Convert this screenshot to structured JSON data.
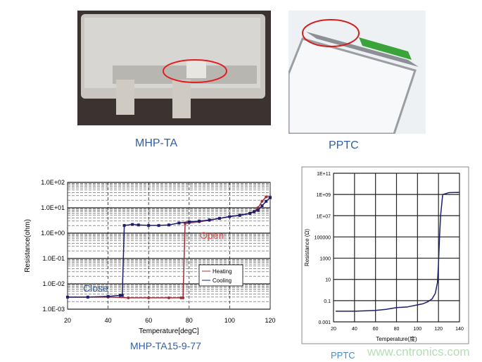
{
  "photos": [
    {
      "caption": "MHP-TA"
    },
    {
      "caption": "PPTC"
    }
  ],
  "colors": {
    "heating": "#a0303a",
    "cooling": "#1c1f6e",
    "caption": "#2f5fa8",
    "pptc_curve": "#1c1f6e",
    "annotation_open": "#d9534f",
    "annotation_close": "#2f5fa8"
  },
  "chart_data": [
    {
      "type": "line",
      "caption": "MHP-TA15-9-77",
      "xlabel": "Temperature[degC]",
      "ylabel": "Resistance(ohm)",
      "xlim": [
        20,
        120
      ],
      "ylim": [
        0.001,
        100
      ],
      "yscale": "log",
      "grid": true,
      "xticks": [
        "20",
        "40",
        "60",
        "80",
        "100",
        "120"
      ],
      "yticks": [
        "1.0E-03",
        "1.0E-02",
        "1.0E-01",
        "1.0E+00",
        "1.0E+01",
        "1.0E+02"
      ],
      "annotations": [
        "Open",
        "Close"
      ],
      "legend": "right-center",
      "series": [
        {
          "name": "Heating",
          "x": [
            20,
            30,
            40,
            50,
            60,
            70,
            76,
            77,
            78,
            80,
            85,
            90,
            95,
            100,
            105,
            110,
            112,
            114,
            116,
            118,
            120
          ],
          "y": [
            0.003,
            0.003,
            0.003,
            0.0028,
            0.0028,
            0.0028,
            0.0028,
            0.0028,
            2.4,
            2.5,
            2.8,
            3.2,
            3.8,
            4.5,
            5.2,
            6,
            7,
            10,
            18,
            27,
            27
          ]
        },
        {
          "name": "Cooling",
          "x": [
            120,
            118,
            116,
            114,
            112,
            110,
            105,
            100,
            95,
            90,
            85,
            80,
            75,
            70,
            65,
            60,
            55,
            52,
            48,
            47,
            46,
            40,
            30,
            20
          ],
          "y": [
            25,
            18,
            12,
            8,
            7,
            6,
            5,
            4.5,
            3.8,
            3.3,
            3,
            2.8,
            2.5,
            2.1,
            2,
            2,
            2.1,
            2.2,
            2,
            0.0035,
            0.0035,
            0.0032,
            0.003,
            0.003
          ]
        }
      ]
    },
    {
      "type": "line",
      "caption": "PPTC",
      "xlabel": "Temperature(度)",
      "ylabel": "Resistance (Ω)",
      "xlim": [
        20,
        140
      ],
      "ylim": [
        0.001,
        100000000000.0
      ],
      "yscale": "log",
      "grid": true,
      "xticks": [
        "20",
        "40",
        "60",
        "80",
        "100",
        "120",
        "140"
      ],
      "yticks": [
        "0.001",
        "0.1",
        "10",
        "1000",
        "100000",
        "1E+07",
        "1E+09",
        "1E+11"
      ],
      "series": [
        {
          "x": [
            22,
            40,
            60,
            70,
            80,
            90,
            100,
            105,
            110,
            114,
            117,
            119,
            120,
            121,
            122,
            123,
            124,
            130,
            140
          ],
          "y": [
            0.01,
            0.01,
            0.012,
            0.015,
            0.022,
            0.025,
            0.04,
            0.05,
            0.08,
            0.15,
            0.5,
            5,
            300,
            100000.0,
            10000000.0,
            100000000.0,
            1000000000.0,
            1500000000.0,
            1600000000.0
          ]
        }
      ]
    }
  ],
  "watermark": "www.cntronics.com"
}
